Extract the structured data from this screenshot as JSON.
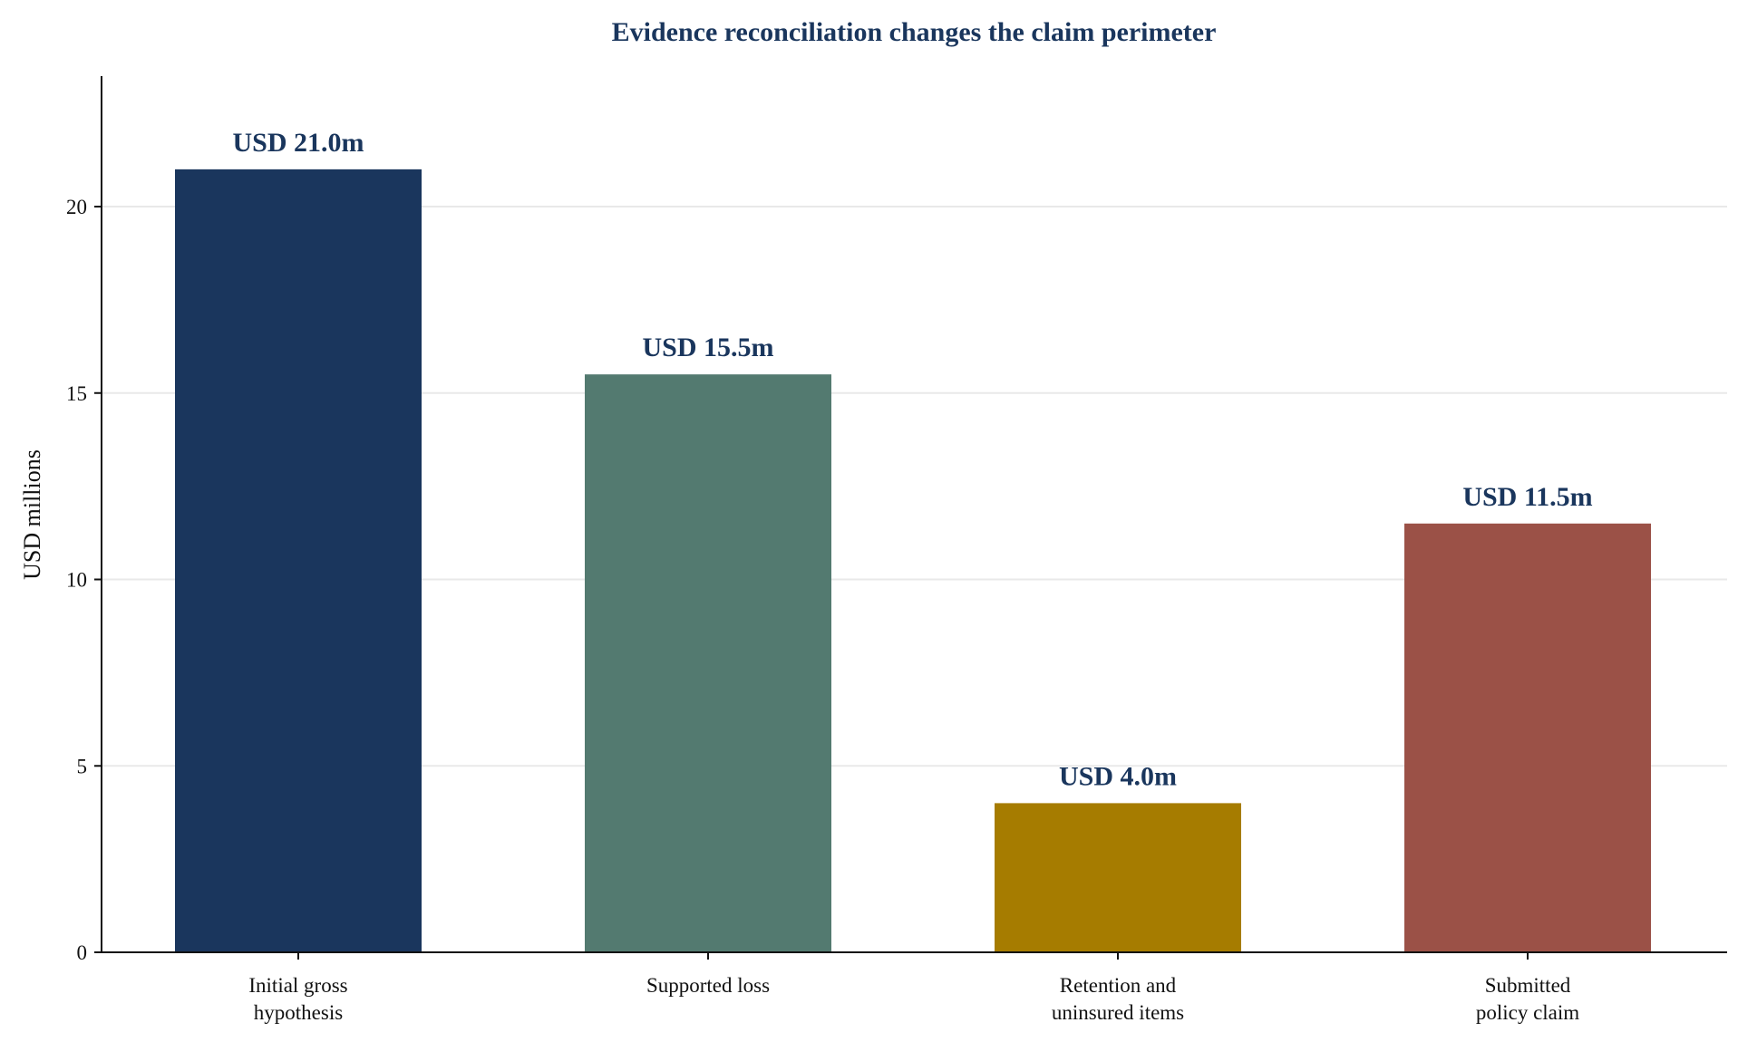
{
  "chart_data": {
    "type": "bar",
    "title": "Evidence reconciliation changes the claim perimeter",
    "xlabel": "",
    "ylabel": "USD millions",
    "categories": [
      [
        "Initial gross",
        "hypothesis"
      ],
      [
        "Supported loss"
      ],
      [
        "Retention and",
        "uninsured items"
      ],
      [
        "Submitted",
        "policy claim"
      ]
    ],
    "values": [
      21.0,
      15.5,
      4.0,
      11.5
    ],
    "value_labels": [
      "USD 21.0m",
      "USD 15.5m",
      "USD 4.0m",
      "USD 11.5m"
    ],
    "colors": [
      "#1a365d",
      "#537a70",
      "#a67c00",
      "#9b5147"
    ],
    "yticks": [
      0,
      5,
      10,
      15,
      20
    ],
    "ylim": [
      0,
      23.5
    ],
    "grid": true,
    "title_color": "#1a365d",
    "label_color": "#1a365d"
  }
}
